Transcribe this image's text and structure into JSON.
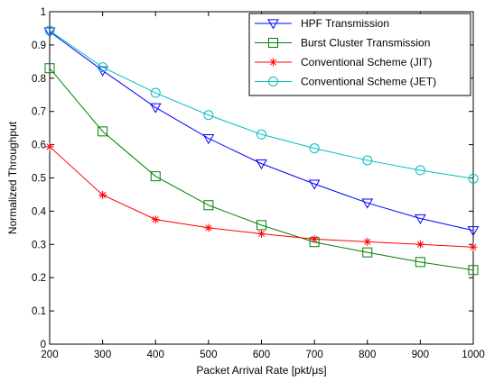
{
  "chart_data": {
    "type": "line",
    "title": "",
    "xlabel": "Packet Arrival Rate [pkt/μs]",
    "ylabel": "Normalized Throughput",
    "xlim": [
      200,
      1000
    ],
    "ylim": [
      0,
      1
    ],
    "xticks": [
      200,
      300,
      400,
      500,
      600,
      700,
      800,
      900,
      1000
    ],
    "yticks": [
      0,
      0.1,
      0.2,
      0.3,
      0.4,
      0.5,
      0.6,
      0.7,
      0.8,
      0.9,
      1
    ],
    "ytick_labels": [
      "0",
      "0.1",
      "0.2",
      "0.3",
      "0.4",
      "0.5",
      "0.6",
      "0.7",
      "0.8",
      "0.9",
      "1"
    ],
    "grid": false,
    "legend_position": "top-right",
    "x": [
      200,
      300,
      400,
      500,
      600,
      700,
      800,
      900,
      1000
    ],
    "series": [
      {
        "name": "HPF Transmission",
        "color": "#0000ff",
        "marker": "triangle-down",
        "values": [
          0.94,
          0.823,
          0.712,
          0.619,
          0.543,
          0.482,
          0.425,
          0.378,
          0.342
        ]
      },
      {
        "name": "Burst Cluster Transmission",
        "color": "#008000",
        "marker": "square",
        "values": [
          0.83,
          0.64,
          0.505,
          0.418,
          0.358,
          0.307,
          0.276,
          0.247,
          0.223
        ]
      },
      {
        "name": "Conventional Scheme (JIT)",
        "color": "#ff0000",
        "marker": "asterisk",
        "values": [
          0.594,
          0.449,
          0.375,
          0.35,
          0.332,
          0.316,
          0.308,
          0.3,
          0.292
        ]
      },
      {
        "name": "Conventional Scheme (JET)",
        "color": "#00bfbf",
        "marker": "circle",
        "values": [
          0.943,
          0.833,
          0.756,
          0.689,
          0.631,
          0.589,
          0.553,
          0.523,
          0.498
        ]
      }
    ]
  }
}
